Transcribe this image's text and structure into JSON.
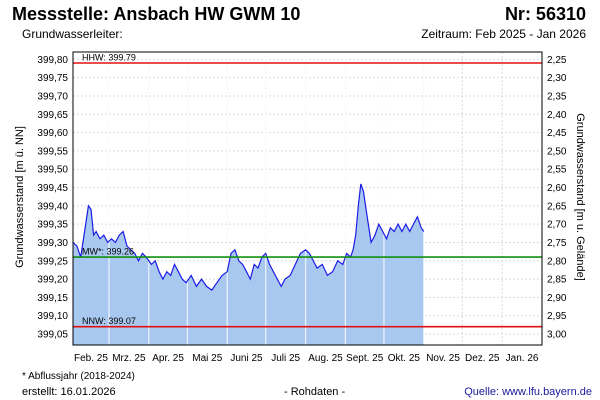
{
  "header": {
    "title": "Messstelle: Ansbach HW GWM 10",
    "number": "Nr: 56310",
    "aquifer": "Grundwasserleiter:",
    "period": "Zeitraum: Feb 2025 - Jan 2026"
  },
  "footer": {
    "footnote": "* Abflussjahr (2018-2024)",
    "created": "erstellt:  16.01.2026",
    "raw": "- Rohdaten -",
    "source": "Quelle:  www.lfu.bayern.de"
  },
  "colors": {
    "area_fill": "#a9c8f0",
    "line": "#1c1ce8",
    "hhw": "#e01010",
    "mw": "#109010",
    "nnw": "#e01010",
    "grid": "#d9d9d9"
  },
  "chart_data": {
    "type": "area",
    "ylabel_left": "Grundwasserstand [m ü. NN]",
    "ylabel_right": "Grundwasserstand [m u. Gelände]",
    "ylim": [
      399.02,
      399.82
    ],
    "y_ticks_left": [
      "399,80",
      "399,75",
      "399,70",
      "399,65",
      "399,60",
      "399,55",
      "399,50",
      "399,45",
      "399,40",
      "399,35",
      "399,30",
      "399,25",
      "399,20",
      "399,15",
      "399,10",
      "399,05"
    ],
    "y_ticks_right": [
      "2,25",
      "2,30",
      "2,35",
      "2,40",
      "2,45",
      "2,50",
      "2,55",
      "2,60",
      "2,65",
      "2,70",
      "2,75",
      "2,80",
      "2,85",
      "2,90",
      "2,95",
      "3,00"
    ],
    "x_range": [
      "2025-02-01",
      "2026-02-01"
    ],
    "x_ticks": [
      {
        "label": "Feb. 25",
        "date": "2025-02-01"
      },
      {
        "label": "Mrz. 25",
        "date": "2025-03-01"
      },
      {
        "label": "Apr. 25",
        "date": "2025-04-01"
      },
      {
        "label": "Mai 25",
        "date": "2025-05-01"
      },
      {
        "label": "Juni 25",
        "date": "2025-06-01"
      },
      {
        "label": "Juli 25",
        "date": "2025-07-01"
      },
      {
        "label": "Aug. 25",
        "date": "2025-08-01"
      },
      {
        "label": "Sept. 25",
        "date": "2025-09-01"
      },
      {
        "label": "Okt. 25",
        "date": "2025-10-01"
      },
      {
        "label": "Nov. 25",
        "date": "2025-11-01"
      },
      {
        "label": "Dez. 25",
        "date": "2025-12-01"
      },
      {
        "label": "Jan. 26",
        "date": "2026-01-01"
      }
    ],
    "reference_lines": [
      {
        "label": "HHW: 399.79",
        "value": 399.79
      },
      {
        "label": "MW*: 399.26",
        "value": 399.26
      },
      {
        "label": "NNW: 399.07",
        "value": 399.07
      }
    ],
    "grid": true,
    "series": [
      {
        "x": [
          "2025-02-01",
          "2025-02-04",
          "2025-02-07",
          "2025-02-10",
          "2025-02-13",
          "2025-02-15",
          "2025-02-17",
          "2025-02-19",
          "2025-02-22",
          "2025-02-25",
          "2025-02-28",
          "2025-03-03",
          "2025-03-06",
          "2025-03-09",
          "2025-03-12",
          "2025-03-15",
          "2025-03-18",
          "2025-03-21",
          "2025-03-24",
          "2025-03-27",
          "2025-03-30",
          "2025-04-03",
          "2025-04-06",
          "2025-04-09",
          "2025-04-12",
          "2025-04-15",
          "2025-04-18",
          "2025-04-21",
          "2025-04-24",
          "2025-04-27",
          "2025-04-30",
          "2025-05-04",
          "2025-05-08",
          "2025-05-12",
          "2025-05-16",
          "2025-05-20",
          "2025-05-24",
          "2025-05-28",
          "2025-06-01",
          "2025-06-04",
          "2025-06-07",
          "2025-06-10",
          "2025-06-13",
          "2025-06-16",
          "2025-06-19",
          "2025-06-22",
          "2025-06-25",
          "2025-06-28",
          "2025-07-01",
          "2025-07-04",
          "2025-07-07",
          "2025-07-10",
          "2025-07-13",
          "2025-07-16",
          "2025-07-20",
          "2025-07-24",
          "2025-07-28",
          "2025-08-01",
          "2025-08-04",
          "2025-08-07",
          "2025-08-10",
          "2025-08-14",
          "2025-08-18",
          "2025-08-22",
          "2025-08-26",
          "2025-08-30",
          "2025-09-02",
          "2025-09-05",
          "2025-09-07",
          "2025-09-09",
          "2025-09-11",
          "2025-09-13",
          "2025-09-15",
          "2025-09-18",
          "2025-09-21",
          "2025-09-24",
          "2025-09-27",
          "2025-09-30",
          "2025-10-03",
          "2025-10-06",
          "2025-10-09",
          "2025-10-12",
          "2025-10-15",
          "2025-10-18",
          "2025-10-21",
          "2025-10-24",
          "2025-10-27",
          "2025-10-30",
          "2025-11-01"
        ],
        "y": [
          399.3,
          399.29,
          399.26,
          399.33,
          399.4,
          399.39,
          399.32,
          399.33,
          399.31,
          399.32,
          399.3,
          399.31,
          399.3,
          399.32,
          399.33,
          399.29,
          399.28,
          399.27,
          399.25,
          399.27,
          399.26,
          399.24,
          399.25,
          399.22,
          399.2,
          399.22,
          399.21,
          399.24,
          399.22,
          399.2,
          399.19,
          399.21,
          399.18,
          399.2,
          399.18,
          399.17,
          399.19,
          399.21,
          399.22,
          399.27,
          399.28,
          399.25,
          399.24,
          399.22,
          399.2,
          399.24,
          399.23,
          399.26,
          399.27,
          399.24,
          399.22,
          399.2,
          399.18,
          399.2,
          399.21,
          399.24,
          399.27,
          399.28,
          399.27,
          399.25,
          399.23,
          399.24,
          399.21,
          399.22,
          399.25,
          399.24,
          399.27,
          399.26,
          399.28,
          399.32,
          399.4,
          399.46,
          399.44,
          399.37,
          399.3,
          399.32,
          399.35,
          399.33,
          399.31,
          399.34,
          399.33,
          399.35,
          399.33,
          399.35,
          399.33,
          399.35,
          399.37,
          399.34,
          399.33
        ]
      }
    ]
  }
}
